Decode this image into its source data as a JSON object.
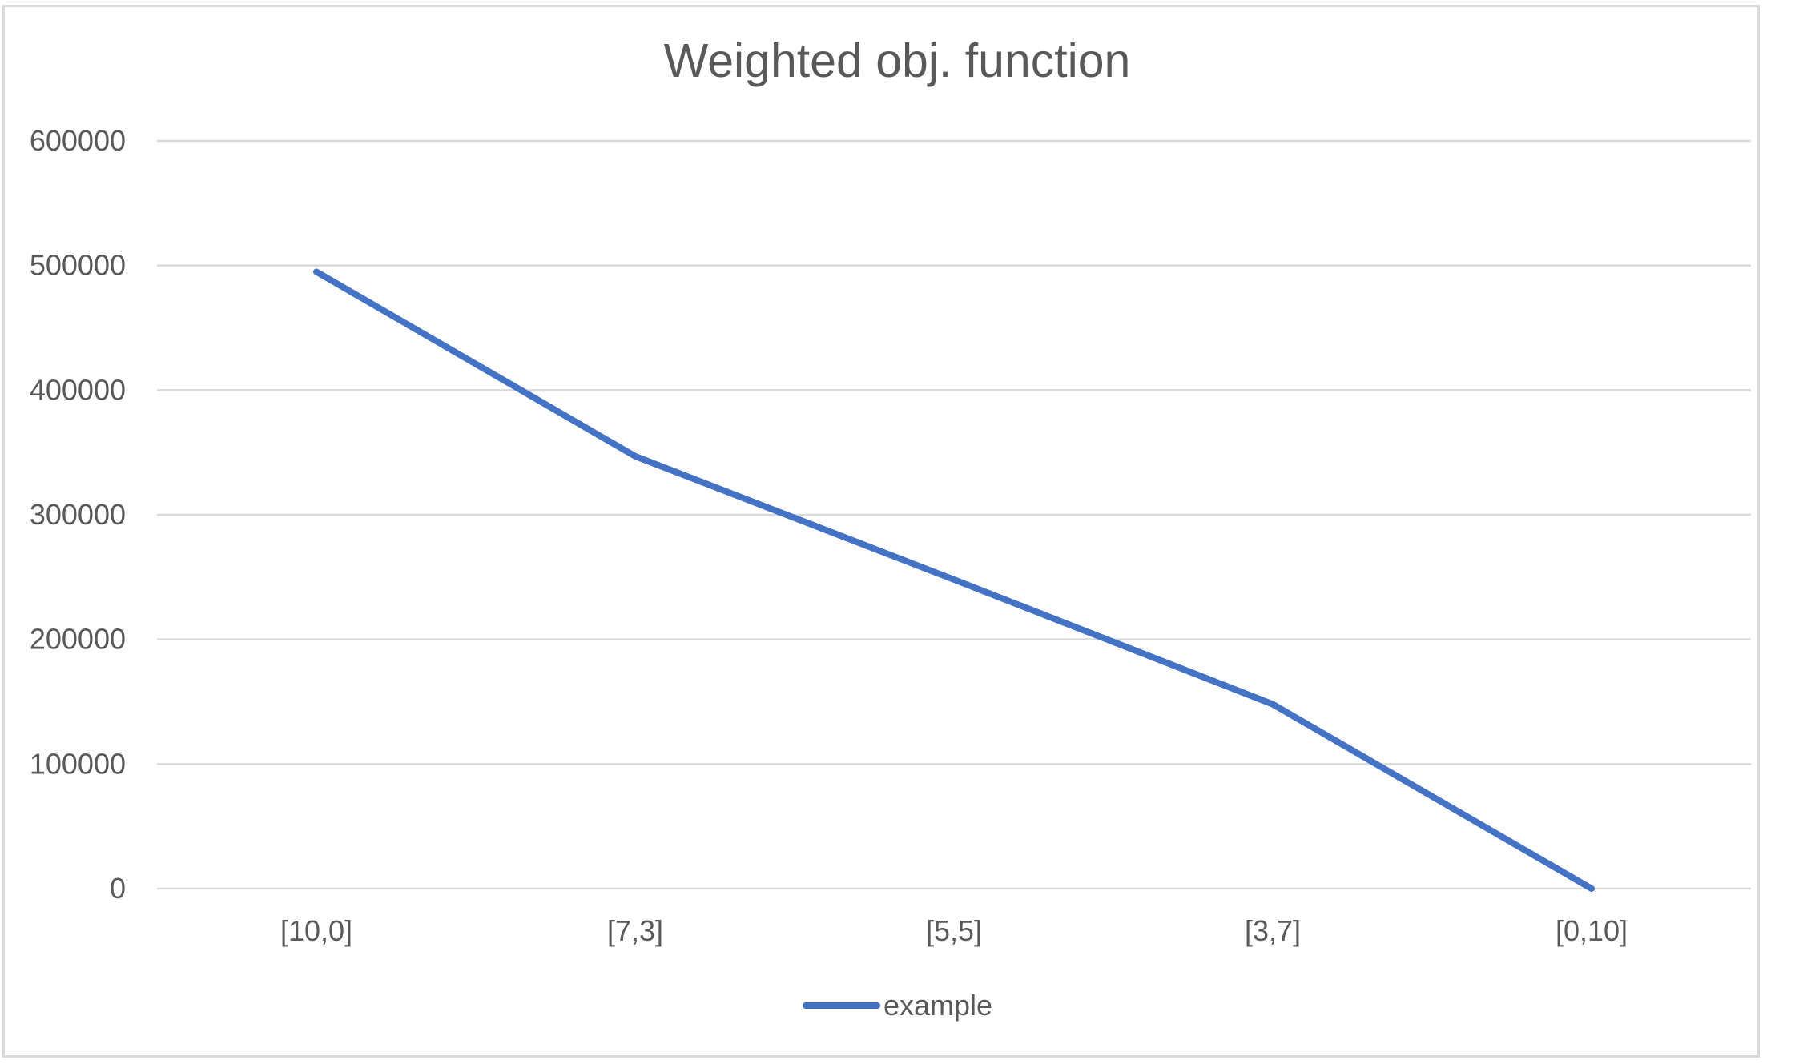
{
  "chart_data": {
    "type": "line",
    "title": "Weighted obj. function",
    "xlabel": "",
    "ylabel": "",
    "categories": [
      "[10,0]",
      "[7,3]",
      "[5,5]",
      "[3,7]",
      "[0,10]"
    ],
    "series": [
      {
        "name": "example",
        "values": [
          495000,
          347000,
          248000,
          148000,
          0
        ],
        "color": "#4472c4"
      }
    ],
    "ylim": [
      0,
      600000
    ],
    "yticks": [
      0,
      100000,
      200000,
      300000,
      400000,
      500000,
      600000
    ],
    "ytick_labels": [
      "0",
      "100000",
      "200000",
      "300000",
      "400000",
      "500000",
      "600000"
    ],
    "grid": true,
    "gridline_color": "#d9d9d9",
    "legend": "bottom-center"
  }
}
